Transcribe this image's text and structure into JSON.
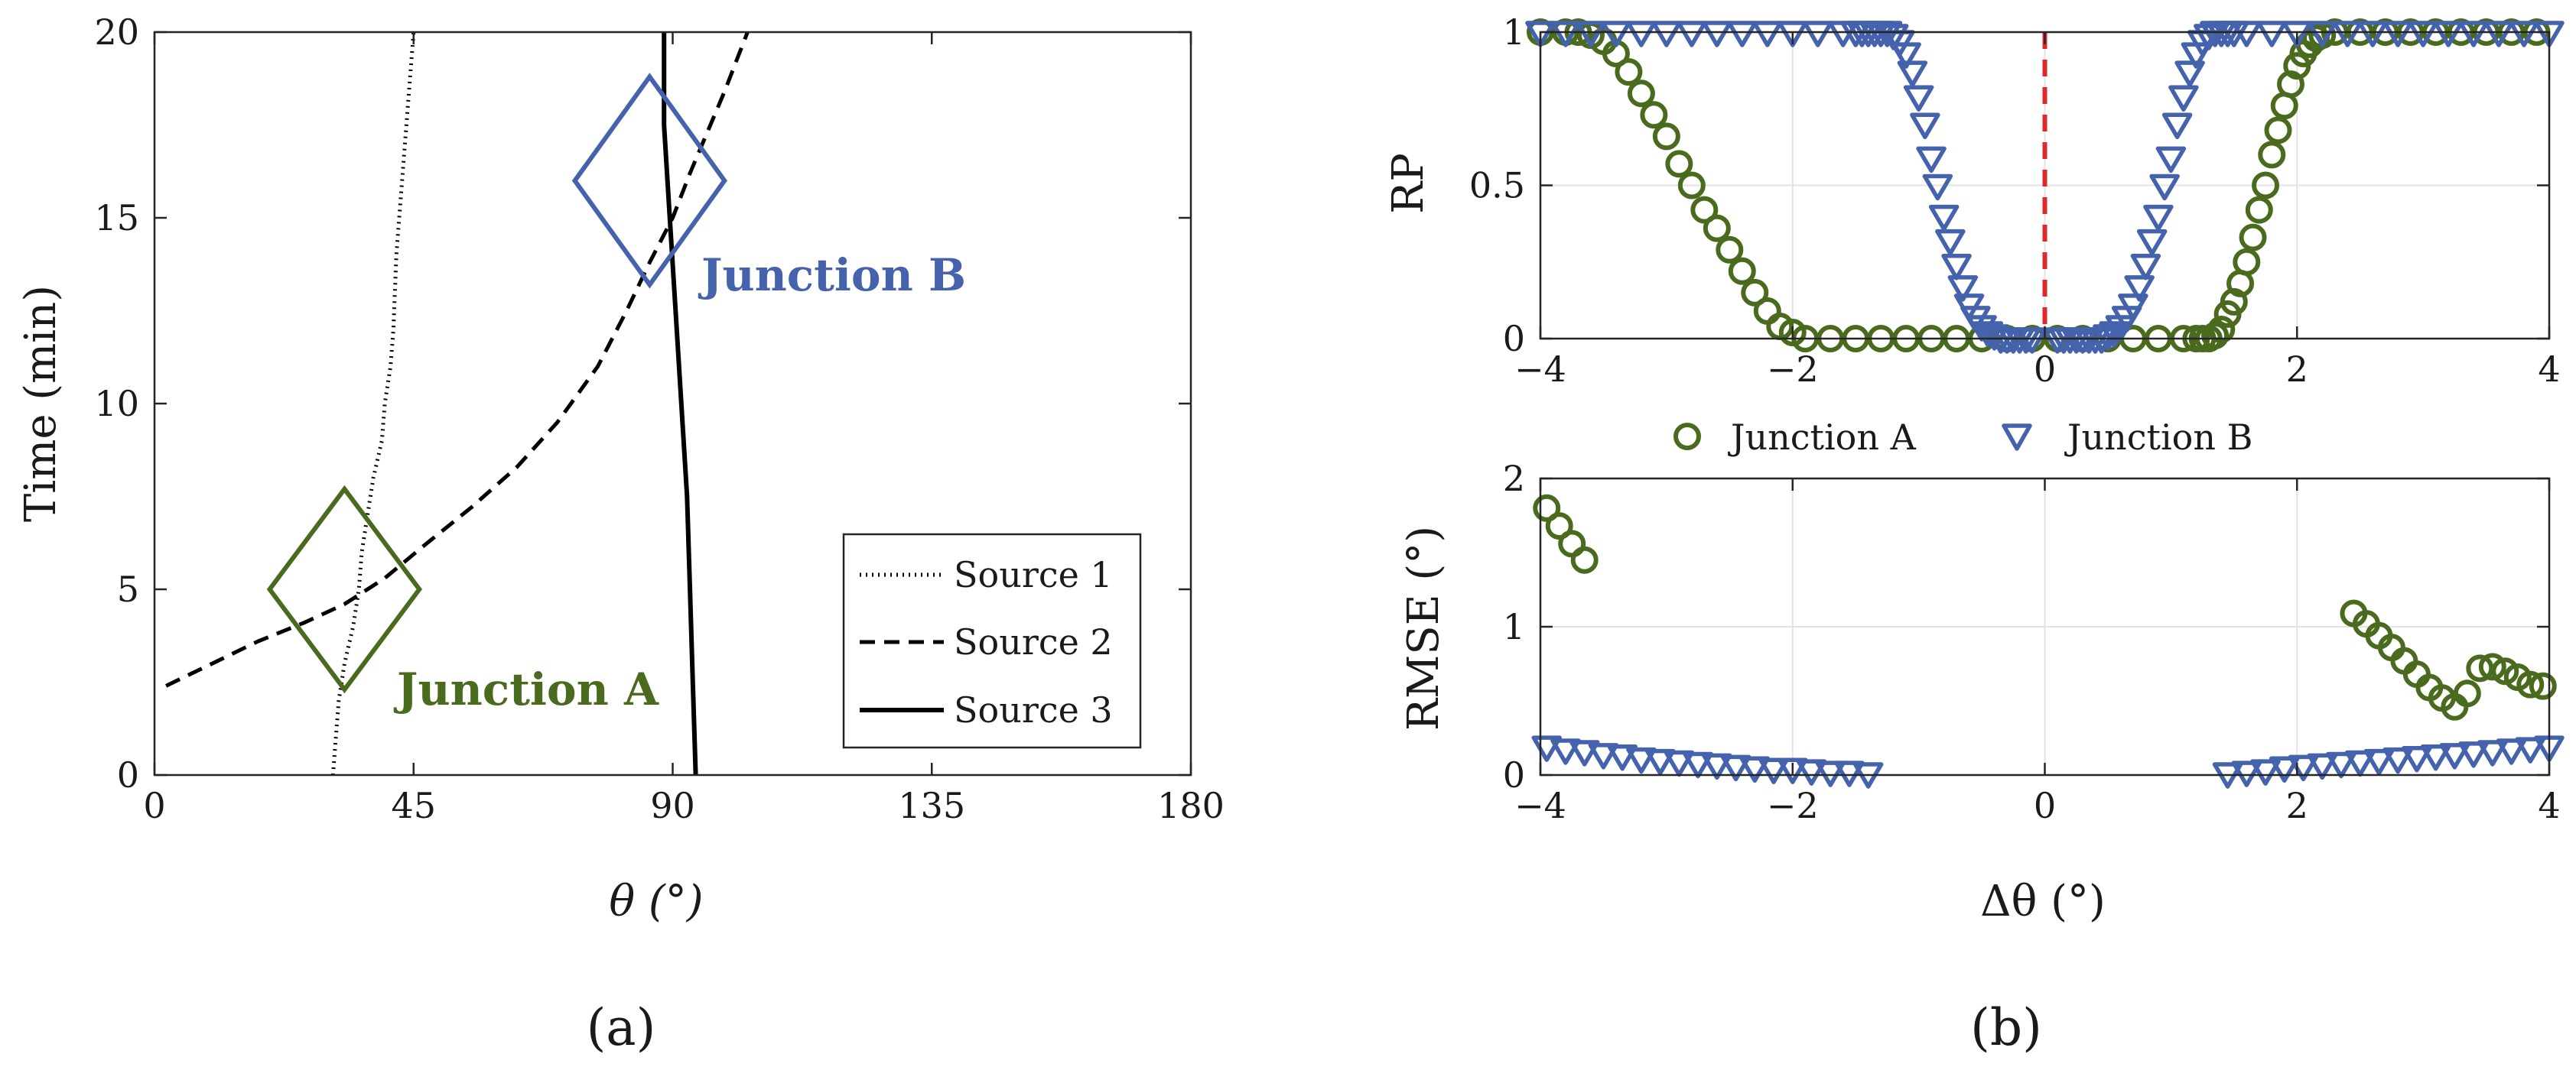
{
  "figure": {
    "panel_labels": [
      "(a)",
      "(b)"
    ]
  },
  "colors": {
    "junction_a": "#4a6b1e",
    "junction_b": "#4562ad",
    "reference_line": "#e0282b",
    "source_lines": "#000000"
  },
  "chart_data": [
    {
      "id": "panel-a",
      "type": "line",
      "title": "",
      "xlabel": "θ (°)",
      "ylabel": "Time (min)",
      "xlim": [
        0,
        180
      ],
      "ylim": [
        0,
        20
      ],
      "xticks": [
        0,
        45,
        90,
        135,
        180
      ],
      "yticks": [
        0,
        5,
        10,
        15,
        20
      ],
      "grid": false,
      "legend_position": "bottom-right",
      "series": [
        {
          "name": "Source 1",
          "style": "dotted",
          "x": [
            31,
            31.5,
            32,
            33,
            34.5,
            35.5,
            36,
            37,
            38,
            39.5,
            40,
            41,
            41.5,
            42,
            43,
            44,
            45
          ],
          "y": [
            0,
            1,
            2,
            3,
            4,
            5,
            6,
            7,
            8,
            9,
            10,
            11,
            12,
            14,
            16,
            18,
            20
          ]
        },
        {
          "name": "Source 2",
          "style": "dashed",
          "x": [
            2,
            10,
            18,
            26,
            33,
            40,
            47,
            55,
            63,
            70,
            77,
            82,
            86,
            90,
            93,
            96,
            99,
            101,
            103
          ],
          "y": [
            2.4,
            3,
            3.6,
            4.1,
            4.6,
            5.3,
            6.2,
            7.2,
            8.3,
            9.5,
            11,
            12.5,
            13.8,
            15,
            16.2,
            17.3,
            18.4,
            19.2,
            20
          ]
        },
        {
          "name": "Source 3",
          "style": "solid",
          "x": [
            94,
            93.5,
            93,
            92.5,
            91.5,
            90.5,
            89.5,
            88.5,
            88.5
          ],
          "y": [
            0,
            2.5,
            5,
            7.5,
            10,
            12.5,
            15,
            17.5,
            20
          ]
        }
      ],
      "annotations": [
        {
          "label": "Junction A",
          "center_x": 33,
          "center_y": 5,
          "half_width_x": 13,
          "half_height_y": 2.7
        },
        {
          "label": "Junction B",
          "center_x": 86,
          "center_y": 16,
          "half_width_x": 13,
          "half_height_y": 2.8
        }
      ]
    },
    {
      "id": "panel-b-top",
      "type": "scatter",
      "title": "",
      "xlabel": "",
      "ylabel": "RP",
      "xlim": [
        -4,
        4
      ],
      "ylim": [
        0,
        1
      ],
      "xticks": [
        -4,
        -2,
        0,
        2,
        4
      ],
      "yticks": [
        0,
        0.5,
        1
      ],
      "grid": true,
      "reference_line_x": 0,
      "series": [
        {
          "name": "Junction A",
          "marker": "circle",
          "x": [
            -4.0,
            -3.8,
            -3.7,
            -3.6,
            -3.5,
            -3.4,
            -3.3,
            -3.2,
            -3.1,
            -3.0,
            -2.9,
            -2.8,
            -2.7,
            -2.6,
            -2.5,
            -2.4,
            -2.3,
            -2.2,
            -2.1,
            -2.0,
            -1.9,
            -1.7,
            -1.5,
            -1.3,
            -1.1,
            -0.9,
            -0.7,
            -0.5,
            -0.3,
            -0.1,
            0.1,
            0.3,
            0.5,
            0.7,
            0.9,
            1.1,
            1.2,
            1.25,
            1.3,
            1.35,
            1.4,
            1.45,
            1.5,
            1.55,
            1.6,
            1.65,
            1.7,
            1.75,
            1.8,
            1.85,
            1.9,
            1.95,
            2.0,
            2.05,
            2.1,
            2.15,
            2.2,
            2.3,
            2.5,
            2.7,
            2.9,
            3.1,
            3.3,
            3.5,
            3.7,
            3.9
          ],
          "y": [
            1.0,
            1.0,
            1.0,
            0.99,
            0.97,
            0.93,
            0.87,
            0.8,
            0.73,
            0.66,
            0.57,
            0.5,
            0.42,
            0.36,
            0.29,
            0.22,
            0.15,
            0.09,
            0.04,
            0.02,
            0.0,
            0.0,
            0.0,
            0.0,
            0.0,
            0.0,
            0.0,
            0.0,
            0.0,
            0.0,
            0.0,
            0.0,
            0.0,
            0.0,
            0.0,
            0.0,
            0.0,
            0.0,
            0.0,
            0.01,
            0.03,
            0.08,
            0.12,
            0.18,
            0.25,
            0.33,
            0.42,
            0.5,
            0.6,
            0.68,
            0.76,
            0.83,
            0.89,
            0.93,
            0.96,
            0.98,
            0.99,
            1.0,
            1.0,
            1.0,
            1.0,
            1.0,
            1.0,
            1.0,
            1.0,
            1.0
          ]
        },
        {
          "name": "Junction B",
          "marker": "triangle-down",
          "x": [
            -4.0,
            -3.8,
            -3.6,
            -3.4,
            -3.2,
            -3.0,
            -2.8,
            -2.6,
            -2.4,
            -2.2,
            -2.0,
            -1.8,
            -1.6,
            -1.5,
            -1.45,
            -1.4,
            -1.35,
            -1.3,
            -1.25,
            -1.2,
            -1.15,
            -1.1,
            -1.05,
            -1.0,
            -0.95,
            -0.9,
            -0.85,
            -0.8,
            -0.75,
            -0.7,
            -0.65,
            -0.6,
            -0.55,
            -0.5,
            -0.45,
            -0.4,
            -0.35,
            -0.3,
            -0.25,
            -0.2,
            -0.15,
            -0.1,
            0.1,
            0.15,
            0.2,
            0.25,
            0.3,
            0.35,
            0.4,
            0.45,
            0.5,
            0.55,
            0.6,
            0.65,
            0.7,
            0.75,
            0.8,
            0.85,
            0.9,
            0.95,
            1.0,
            1.05,
            1.1,
            1.15,
            1.2,
            1.25,
            1.3,
            1.35,
            1.4,
            1.45,
            1.5,
            1.6,
            1.8,
            2.0,
            2.2,
            2.4,
            2.6,
            2.8,
            3.0,
            3.2,
            3.4,
            3.6,
            3.8,
            4.0
          ],
          "y": [
            1.0,
            1.0,
            1.0,
            1.0,
            1.0,
            1.0,
            1.0,
            1.0,
            1.0,
            1.0,
            1.0,
            1.0,
            1.0,
            1.0,
            1.0,
            1.0,
            1.0,
            1.0,
            1.0,
            0.99,
            0.97,
            0.93,
            0.87,
            0.79,
            0.7,
            0.59,
            0.5,
            0.4,
            0.32,
            0.24,
            0.17,
            0.11,
            0.07,
            0.04,
            0.02,
            0.01,
            0.0,
            0.0,
            0.0,
            0.0,
            0.0,
            0.0,
            0.0,
            0.0,
            0.0,
            0.0,
            0.0,
            0.0,
            0.0,
            0.0,
            0.01,
            0.02,
            0.04,
            0.07,
            0.11,
            0.17,
            0.24,
            0.32,
            0.4,
            0.5,
            0.59,
            0.7,
            0.79,
            0.87,
            0.93,
            0.97,
            0.99,
            1.0,
            1.0,
            1.0,
            1.0,
            1.0,
            1.0,
            1.0,
            1.0,
            1.0,
            1.0,
            1.0,
            1.0,
            1.0,
            1.0,
            1.0,
            1.0,
            1.0
          ]
        }
      ],
      "legend": [
        "Junction A",
        "Junction B"
      ],
      "legend_position": "below"
    },
    {
      "id": "panel-b-bottom",
      "type": "scatter",
      "title": "",
      "xlabel": "Δθ (°)",
      "ylabel": "RMSE (°)",
      "xlim": [
        -4,
        4
      ],
      "ylim": [
        0,
        2
      ],
      "xticks": [
        -4,
        -2,
        0,
        2,
        4
      ],
      "yticks": [
        0,
        1,
        2
      ],
      "grid": true,
      "series": [
        {
          "name": "Junction A",
          "marker": "circle",
          "x": [
            -3.95,
            -3.85,
            -3.75,
            -3.65,
            2.45,
            2.55,
            2.65,
            2.75,
            2.85,
            2.95,
            3.05,
            3.15,
            3.25,
            3.35,
            3.45,
            3.55,
            3.65,
            3.75,
            3.85,
            3.95
          ],
          "y": [
            1.8,
            1.68,
            1.56,
            1.45,
            1.09,
            1.02,
            0.94,
            0.86,
            0.77,
            0.68,
            0.59,
            0.52,
            0.46,
            0.55,
            0.72,
            0.73,
            0.7,
            0.66,
            0.61,
            0.6
          ]
        },
        {
          "name": "Junction B",
          "marker": "triangle-down",
          "x": [
            -3.95,
            -3.8,
            -3.65,
            -3.5,
            -3.35,
            -3.2,
            -3.05,
            -2.9,
            -2.75,
            -2.6,
            -2.45,
            -2.3,
            -2.15,
            -2.0,
            -1.85,
            -1.7,
            -1.55,
            -1.4,
            1.45,
            1.6,
            1.75,
            1.9,
            2.05,
            2.2,
            2.35,
            2.5,
            2.65,
            2.8,
            2.95,
            3.1,
            3.25,
            3.4,
            3.55,
            3.7,
            3.85,
            4.0
          ],
          "y": [
            0.19,
            0.17,
            0.16,
            0.14,
            0.13,
            0.11,
            0.1,
            0.09,
            0.08,
            0.07,
            0.06,
            0.05,
            0.04,
            0.04,
            0.03,
            0.02,
            0.02,
            0.01,
            0.01,
            0.02,
            0.03,
            0.05,
            0.06,
            0.07,
            0.08,
            0.09,
            0.1,
            0.11,
            0.12,
            0.13,
            0.14,
            0.15,
            0.16,
            0.17,
            0.18,
            0.19
          ]
        }
      ]
    }
  ]
}
